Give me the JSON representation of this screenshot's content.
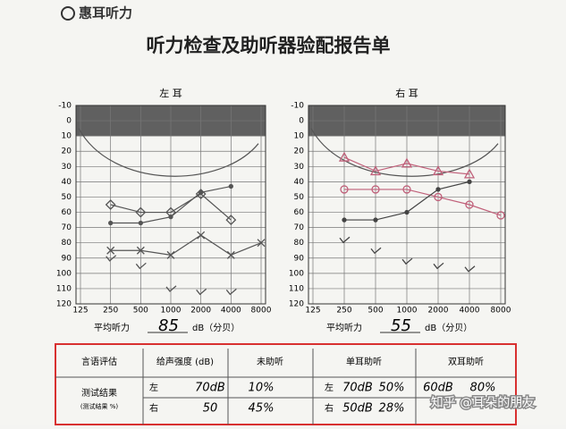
{
  "header": {
    "logo": "惠耳听力",
    "title": "听力检查及助听器验配报告单"
  },
  "audiograms": [
    {
      "title": "左 耳",
      "categories": [
        "125",
        "250",
        "500",
        "1000",
        "2000",
        "4000",
        "8000"
      ],
      "ylim": [
        -10,
        120
      ],
      "yticks": [
        -10,
        0,
        10,
        20,
        30,
        40,
        50,
        60,
        70,
        80,
        90,
        100,
        110,
        120
      ],
      "shade": [
        -10,
        10
      ],
      "average_label": "平均听力",
      "average_value": "85",
      "average_unit": "dB（分贝）",
      "series": [
        {
          "marker": "diamond",
          "color": "#555555",
          "values": [
            null,
            55,
            60,
            60,
            48,
            65,
            null
          ]
        },
        {
          "marker": "dot",
          "color": "#555555",
          "values": [
            null,
            67,
            67,
            63,
            47,
            43,
            null
          ]
        },
        {
          "marker": "x",
          "color": "#555555",
          "values": [
            null,
            85,
            85,
            88,
            75,
            88,
            80
          ]
        },
        {
          "marker": "check",
          "color": "#555555",
          "values": [
            null,
            90,
            95,
            110,
            112,
            112,
            null
          ]
        }
      ]
    },
    {
      "title": "右 耳",
      "categories": [
        "125",
        "250",
        "500",
        "1000",
        "2000",
        "4000",
        "8000"
      ],
      "ylim": [
        -10,
        120
      ],
      "yticks": [
        -10,
        0,
        10,
        20,
        30,
        40,
        50,
        60,
        70,
        80,
        90,
        100,
        110,
        120
      ],
      "shade": [
        -10,
        10
      ],
      "average_label": "平均听力",
      "average_value": "55",
      "average_unit": "dB（分贝）",
      "series": [
        {
          "marker": "triangle",
          "color": "#c0607a",
          "values": [
            null,
            24,
            33,
            28,
            33,
            35,
            null
          ]
        },
        {
          "marker": "circle",
          "color": "#c0607a",
          "values": [
            null,
            45,
            45,
            45,
            50,
            55,
            62
          ]
        },
        {
          "marker": "dot",
          "color": "#444444",
          "values": [
            null,
            65,
            65,
            60,
            45,
            40,
            null
          ]
        },
        {
          "marker": "check",
          "color": "#444444",
          "values": [
            null,
            78,
            85,
            92,
            95,
            97,
            null
          ]
        }
      ]
    }
  ],
  "table": {
    "headers": [
      "言语评估",
      "给声强度 (dB)",
      "未助听",
      "单耳助听",
      "双耳助听"
    ],
    "row_title": "测试结果",
    "row_subtitle": "(测试结果 %)",
    "rows": [
      [
        "左",
        "70dB",
        "10%",
        "左",
        "70dB",
        "50%",
        "60dB",
        "80%"
      ],
      [
        "右",
        "50",
        "45%",
        "右",
        "50dB",
        "28%",
        "",
        ""
      ]
    ]
  },
  "watermark": "知乎 @耳朵的朋友"
}
